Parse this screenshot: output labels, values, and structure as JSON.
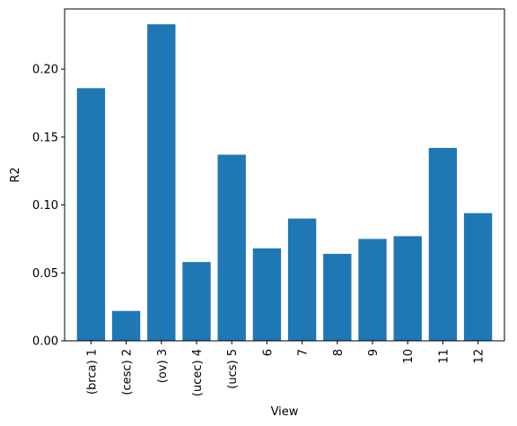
{
  "chart_data": {
    "type": "bar",
    "categories": [
      "(brca) 1",
      "(cesc) 2",
      "(ov) 3",
      "(ucec) 4",
      "(ucs) 5",
      "6",
      "7",
      "8",
      "9",
      "10",
      "11",
      "12"
    ],
    "values": [
      0.186,
      0.022,
      0.233,
      0.058,
      0.137,
      0.068,
      0.09,
      0.064,
      0.075,
      0.077,
      0.142,
      0.094
    ],
    "xlabel": "View",
    "ylabel": "R2",
    "ylim": [
      0.0,
      0.2443
    ],
    "yticks": [
      "0.00",
      "0.05",
      "0.10",
      "0.15",
      "0.20"
    ],
    "bar_color": "#1f77b4",
    "grid": false
  }
}
